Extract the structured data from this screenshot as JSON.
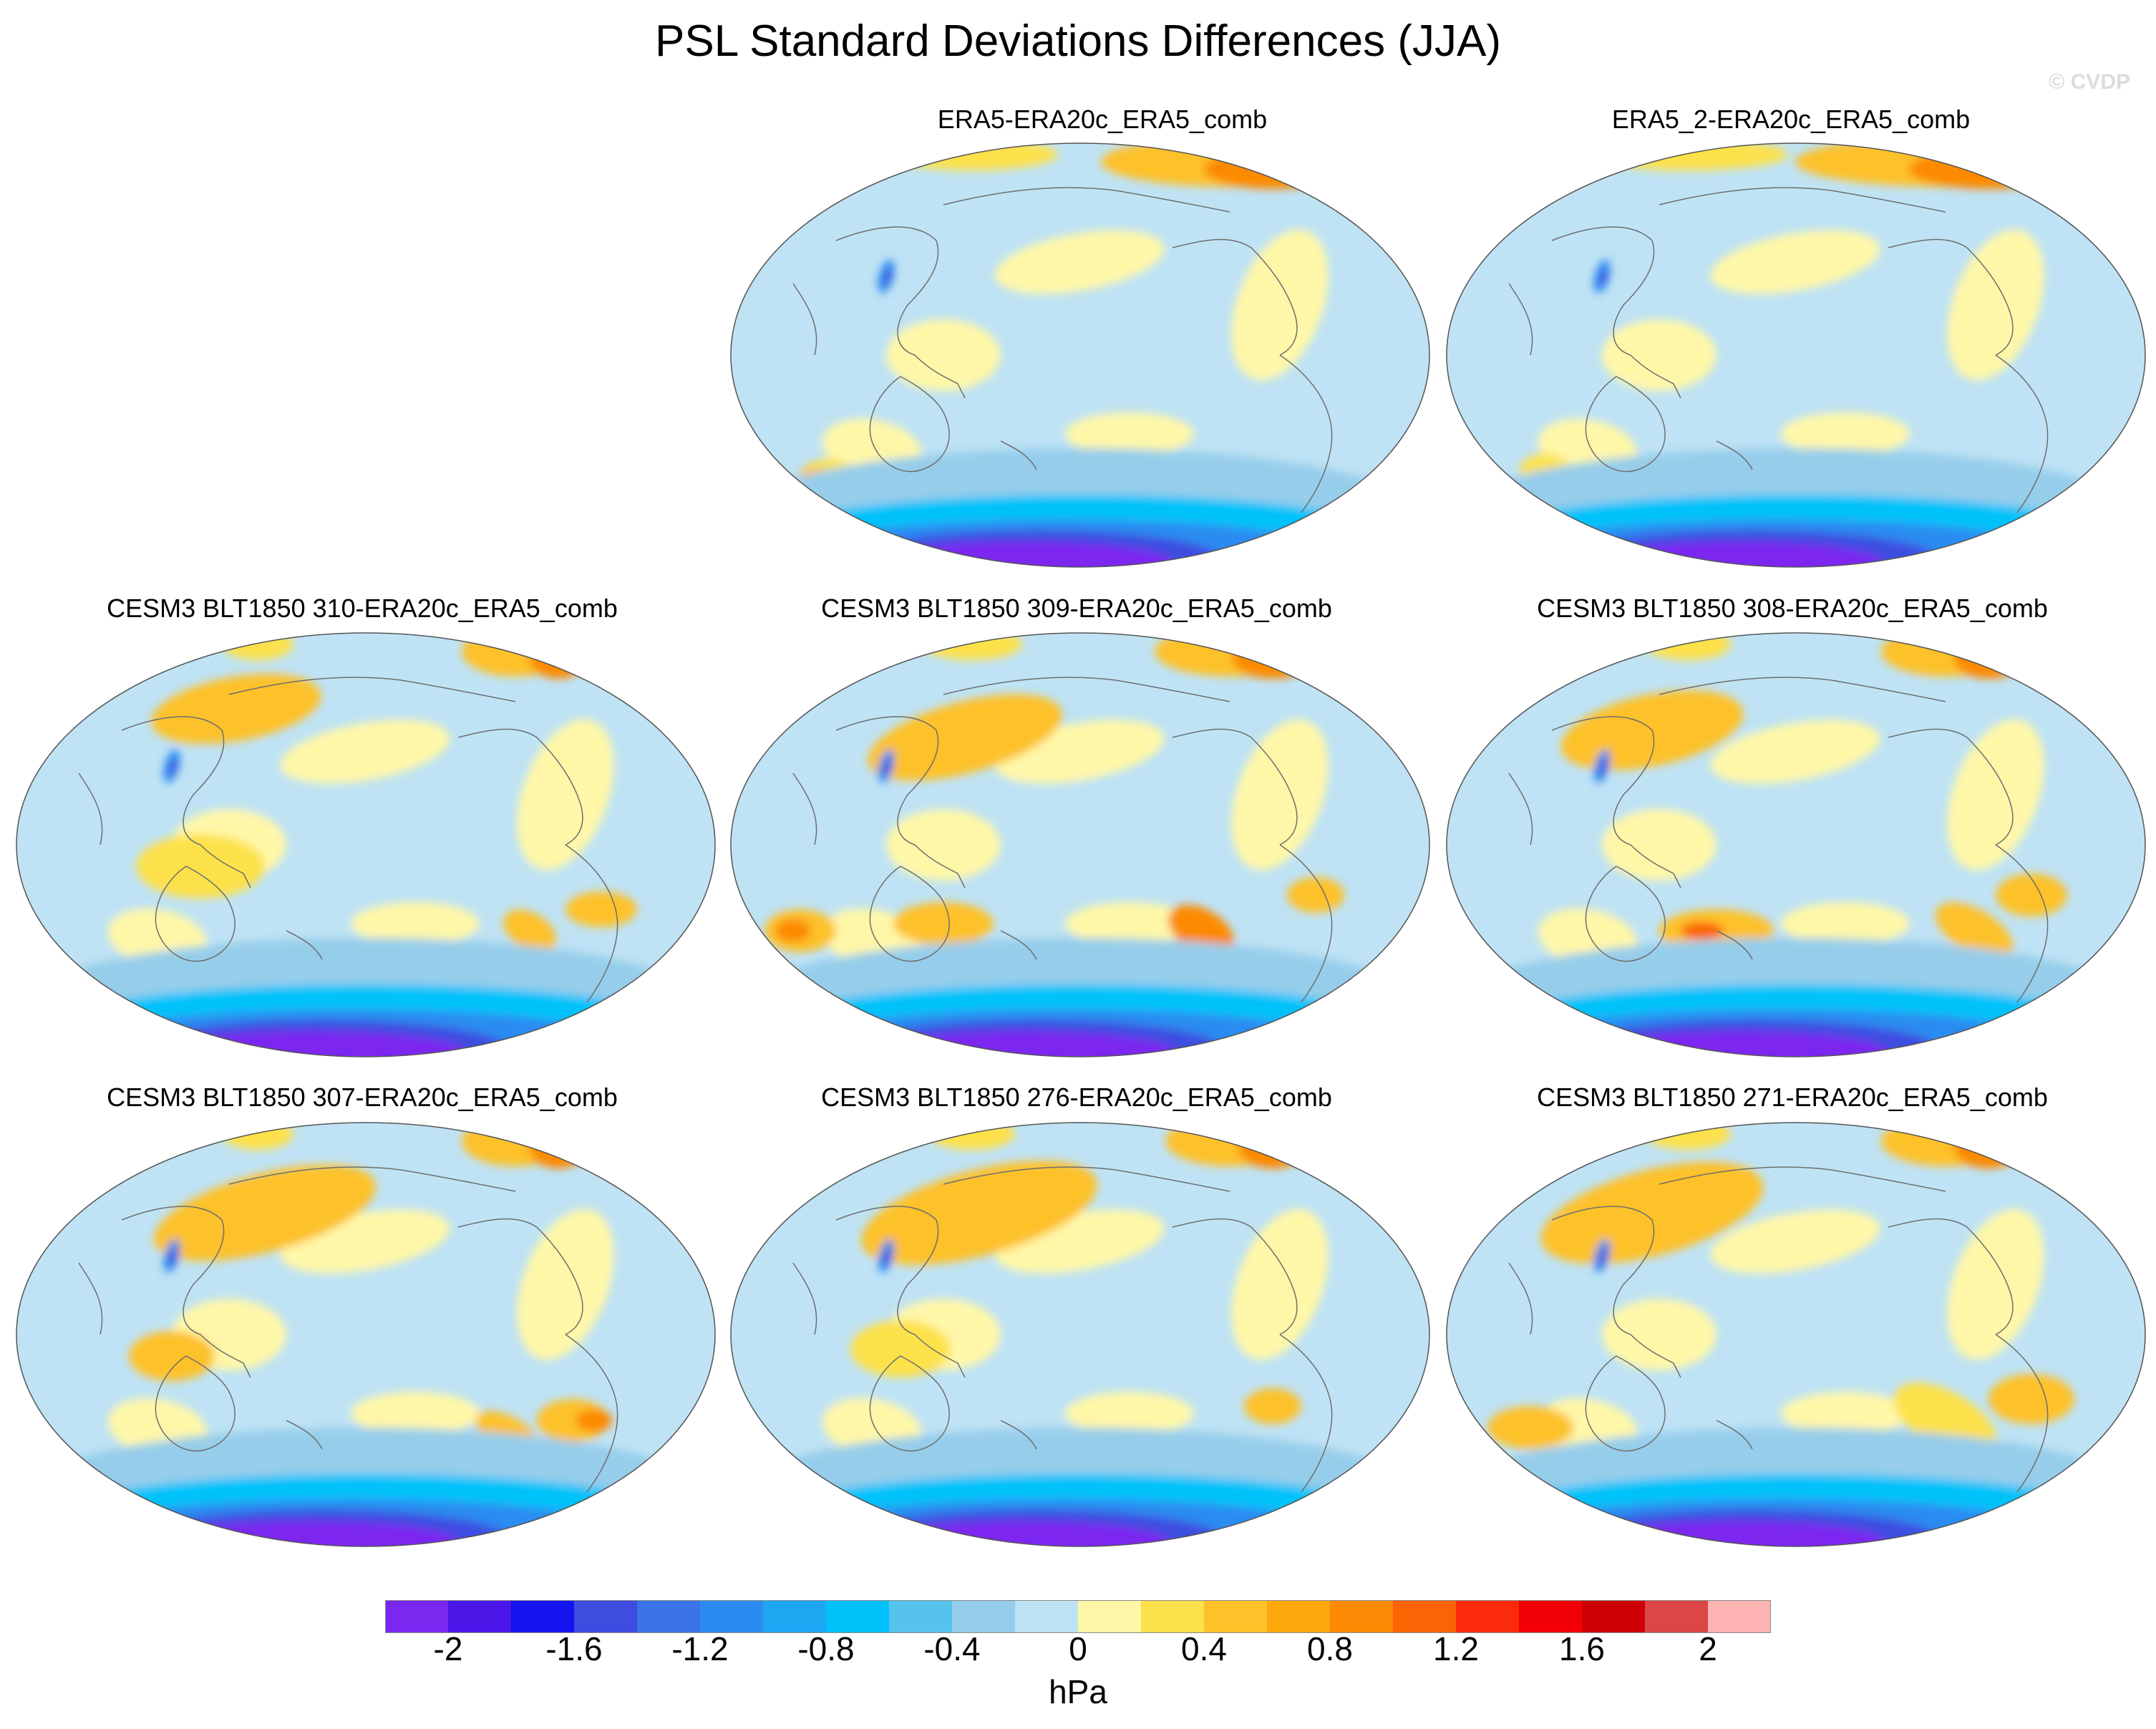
{
  "title": "PSL Standard Deviations Differences (JJA)",
  "credit": "© CVDP",
  "colors": {
    "land_outline": "#6e6e6e",
    "ocean_base": "#bfe3f5"
  },
  "panels": [
    {
      "title": "ERA5-ERA20c_ERA5_comb"
    },
    {
      "title": "ERA5_2-ERA20c_ERA5_comb"
    },
    {
      "title": "CESM3 BLT1850 310-ERA20c_ERA5_comb"
    },
    {
      "title": "CESM3 BLT1850 309-ERA20c_ERA5_comb"
    },
    {
      "title": "CESM3 BLT1850 308-ERA20c_ERA5_comb"
    },
    {
      "title": "CESM3 BLT1850 307-ERA20c_ERA5_comb"
    },
    {
      "title": "CESM3 BLT1850 276-ERA20c_ERA5_comb"
    },
    {
      "title": "CESM3 BLT1850 271-ERA20c_ERA5_comb"
    }
  ],
  "colorbar": {
    "units": "hPa",
    "colors": [
      "#7b27f0",
      "#4a17e8",
      "#1414f0",
      "#3c4de0",
      "#3a74e6",
      "#2a8cf0",
      "#1fa6f2",
      "#00c2fa",
      "#55c3ec",
      "#96cdea",
      "#bde2f4",
      "#fff7a8",
      "#fde14c",
      "#fdc12a",
      "#fca80c",
      "#fc8a04",
      "#fb6404",
      "#fb2a0c",
      "#f20006",
      "#cc0004",
      "#db4646",
      "#ffb4b4"
    ],
    "tick_labels": [
      "-2",
      "-1.6",
      "-1.2",
      "-0.8",
      "-0.4",
      "0",
      "0.4",
      "0.8",
      "1.2",
      "1.6",
      "2"
    ]
  }
}
